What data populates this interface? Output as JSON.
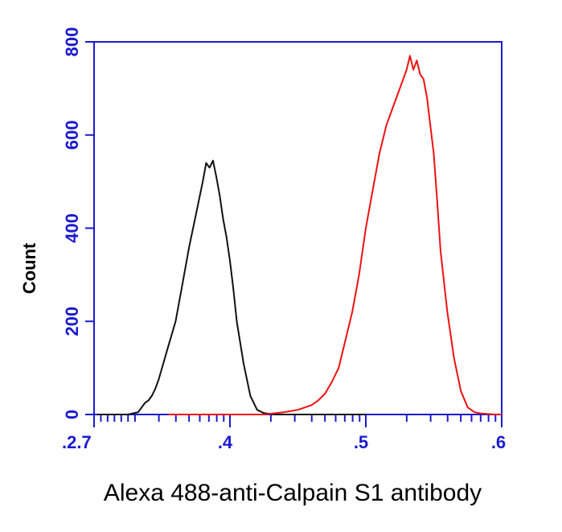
{
  "chart_data": {
    "type": "line",
    "title": "",
    "xlabel": "Alexa 488-anti-Calpain S1 antibody",
    "ylabel": "Count",
    "x_scale": "log",
    "xlim": [
      0.0,
      6.0
    ],
    "ylim": [
      0,
      800
    ],
    "yticks": [
      0,
      200,
      400,
      600,
      800
    ],
    "ytick_labels": [
      "0",
      "200",
      "400",
      "600",
      "800"
    ],
    "xtick_labels": [
      ".2.7",
      ".4",
      ".5",
      ".6"
    ],
    "grid": false,
    "legend": "none",
    "colors": {
      "axis": "#1a1ad0",
      "control": "#111111",
      "stained": "#ee1111"
    },
    "series": [
      {
        "color": "#111111",
        "x": [
          0.05,
          0.3,
          0.5,
          0.65,
          0.7,
          0.75,
          0.8,
          0.85,
          0.9,
          0.95,
          1.0,
          1.05,
          1.1,
          1.2,
          1.3,
          1.4,
          1.5,
          1.6,
          1.65,
          1.7,
          1.75,
          1.8,
          1.85,
          1.9,
          1.95,
          2.0,
          2.05,
          2.1,
          2.2,
          2.3,
          2.4,
          2.5,
          2.6,
          2.7,
          2.8,
          3.0,
          3.5,
          4.0
        ],
        "y": [
          0,
          0,
          0,
          5,
          15,
          25,
          30,
          40,
          55,
          75,
          100,
          125,
          150,
          200,
          280,
          360,
          430,
          500,
          540,
          530,
          545,
          510,
          470,
          420,
          380,
          330,
          270,
          200,
          110,
          40,
          10,
          3,
          1,
          0,
          0,
          0,
          0,
          0
        ]
      },
      {
        "color": "#ee1111",
        "x": [
          1.1,
          1.5,
          2.0,
          2.5,
          2.8,
          3.0,
          3.1,
          3.2,
          3.3,
          3.4,
          3.5,
          3.6,
          3.7,
          3.8,
          3.9,
          4.0,
          4.1,
          4.2,
          4.3,
          4.4,
          4.5,
          4.6,
          4.65,
          4.7,
          4.75,
          4.8,
          4.85,
          4.9,
          4.95,
          5.0,
          5.05,
          5.1,
          5.2,
          5.3,
          5.4,
          5.5,
          5.6,
          5.7,
          5.8,
          5.9,
          6.0
        ],
        "y": [
          0,
          0,
          0,
          0,
          5,
          10,
          15,
          20,
          30,
          45,
          70,
          100,
          160,
          220,
          300,
          400,
          480,
          560,
          620,
          660,
          700,
          740,
          770,
          740,
          760,
          730,
          720,
          680,
          620,
          560,
          460,
          350,
          220,
          120,
          50,
          15,
          5,
          2,
          1,
          0,
          0
        ]
      }
    ]
  }
}
